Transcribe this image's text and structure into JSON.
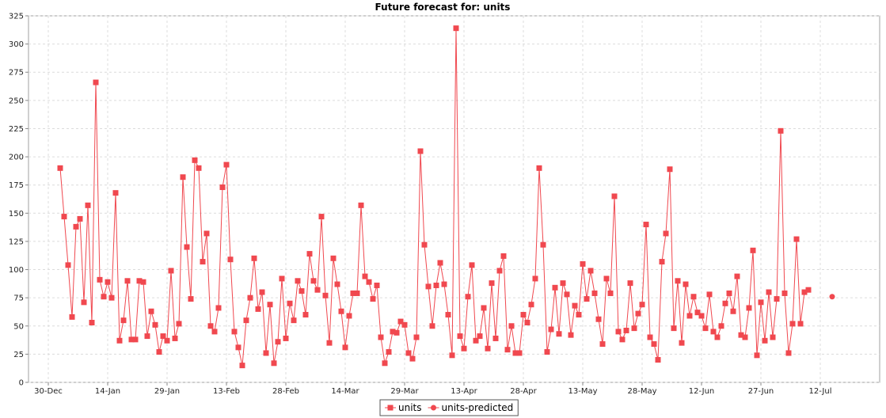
{
  "chart_data": {
    "type": "line",
    "title": "Future forecast for: units",
    "xlabel": "",
    "ylabel": "",
    "ylim": [
      0,
      325
    ],
    "xlim": [
      "2015-12-25",
      "2016-07-27"
    ],
    "grid": true,
    "legend_position": "bottom",
    "y_ticks": [
      0,
      25,
      50,
      75,
      100,
      125,
      150,
      175,
      200,
      225,
      250,
      275,
      300,
      325
    ],
    "x_ticks": [
      {
        "date": "2015-12-30",
        "label": "30-Dec"
      },
      {
        "date": "2016-01-14",
        "label": "14-Jan"
      },
      {
        "date": "2016-01-29",
        "label": "29-Jan"
      },
      {
        "date": "2016-02-13",
        "label": "13-Feb"
      },
      {
        "date": "2016-02-28",
        "label": "28-Feb"
      },
      {
        "date": "2016-03-14",
        "label": "14-Mar"
      },
      {
        "date": "2016-03-29",
        "label": "29-Mar"
      },
      {
        "date": "2016-04-13",
        "label": "13-Apr"
      },
      {
        "date": "2016-04-28",
        "label": "28-Apr"
      },
      {
        "date": "2016-05-13",
        "label": "13-May"
      },
      {
        "date": "2016-05-28",
        "label": "28-May"
      },
      {
        "date": "2016-06-12",
        "label": "12-Jun"
      },
      {
        "date": "2016-06-27",
        "label": "27-Jun"
      },
      {
        "date": "2016-07-12",
        "label": "12-Jul"
      }
    ],
    "series": [
      {
        "name": "units",
        "color": "#f0484f",
        "marker": "square",
        "start_date": "2016-01-02",
        "values": [
          190,
          147,
          104,
          58,
          138,
          145,
          71,
          157,
          53,
          266,
          91,
          76,
          89,
          75,
          168,
          37,
          55,
          90,
          38,
          38,
          90,
          89,
          41,
          63,
          51,
          27,
          41,
          37,
          99,
          39,
          52,
          182,
          120,
          74,
          197,
          190,
          107,
          132,
          50,
          45,
          66,
          173,
          193,
          109,
          45,
          31,
          15,
          55,
          75,
          110,
          65,
          80,
          26,
          69,
          17,
          36,
          92,
          39,
          70,
          55,
          90,
          81,
          60,
          114,
          90,
          82,
          147,
          77,
          35,
          110,
          87,
          63,
          31,
          59,
          79,
          79,
          157,
          94,
          89,
          74,
          86,
          40,
          17,
          27,
          45,
          44,
          54,
          51,
          26,
          21,
          40,
          205,
          122,
          85,
          50,
          86,
          106,
          87,
          60,
          24,
          314,
          41,
          30,
          76,
          104,
          37,
          41,
          66,
          30,
          88,
          39,
          99,
          112,
          29,
          50,
          26,
          26,
          60,
          53,
          69,
          92,
          190,
          122,
          27,
          47,
          84,
          43,
          88,
          78,
          42,
          68,
          60,
          105,
          74,
          99,
          79,
          56,
          34,
          92,
          79,
          165,
          45,
          38,
          46,
          88,
          48,
          61,
          69,
          140,
          40,
          34,
          20,
          107,
          132,
          189,
          48,
          90,
          35,
          87,
          59,
          76,
          62,
          59,
          48,
          78,
          45,
          40,
          50,
          70,
          79,
          63,
          94,
          42,
          40,
          66,
          117,
          24,
          71,
          37,
          80,
          40,
          74,
          223,
          79,
          26,
          52,
          127,
          52,
          80,
          82
        ]
      },
      {
        "name": "units-predicted",
        "color": "#f0484f",
        "marker": "circle",
        "points": [
          {
            "date": "2016-07-15",
            "value": 76
          }
        ]
      }
    ]
  }
}
